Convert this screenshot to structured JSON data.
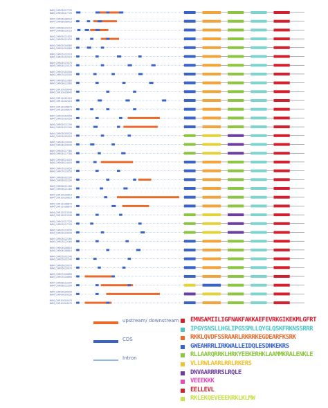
{
  "gene_rows": [
    {
      "label": "NAM_CHR03G17730",
      "exons": [
        [
          0.02,
          0.06
        ],
        [
          0.2,
          0.24
        ],
        [
          0.3,
          0.33
        ],
        [
          0.42,
          0.46
        ]
      ],
      "utr": [
        [
          0.22,
          0.45
        ]
      ],
      "motifs": [
        "blue",
        "orange",
        "green",
        "teal",
        "red"
      ]
    },
    {
      "label": "NAM_CHR06G08410",
      "exons": [
        [
          0.02,
          0.05
        ],
        [
          0.12,
          0.15
        ],
        [
          0.22,
          0.26
        ]
      ],
      "utr": [
        [
          0.18,
          0.4
        ]
      ],
      "motifs": [
        "blue",
        "orange",
        "green",
        "teal",
        "red"
      ]
    },
    {
      "label": "NAM_CHR08G19110",
      "exons": [
        [
          0.03,
          0.06
        ],
        [
          0.1,
          0.14
        ],
        [
          0.2,
          0.24
        ]
      ],
      "utr": [
        [
          0.15,
          0.32
        ]
      ],
      "motifs": [
        "blue",
        "orange",
        "green",
        "teal",
        "red"
      ]
    },
    {
      "label": "NAM_CHR05G11020",
      "exons": [
        [
          0.02,
          0.05
        ],
        [
          0.15,
          0.18
        ],
        [
          0.3,
          0.33
        ]
      ],
      "utr": [
        [
          0.25,
          0.42
        ]
      ],
      "motifs": [
        "blue",
        "orange",
        "green",
        "teal",
        "red"
      ]
    },
    {
      "label": "NAM_CHR02G04580",
      "exons": [
        [
          0.02,
          0.05
        ],
        [
          0.12,
          0.16
        ],
        [
          0.25,
          0.28
        ]
      ],
      "utr": [],
      "motifs": [
        "blue",
        "orange",
        "green",
        "teal",
        "red"
      ]
    },
    {
      "label": "NAM_CHR01G22310",
      "exons": [
        [
          0.02,
          0.05
        ],
        [
          0.2,
          0.23
        ],
        [
          0.4,
          0.44
        ],
        [
          0.6,
          0.63
        ]
      ],
      "utr": [],
      "motifs": [
        "blue",
        "orange",
        "green",
        "teal",
        "red"
      ]
    },
    {
      "label": "NAM_CHR04G15570",
      "exons": [
        [
          0.02,
          0.05
        ],
        [
          0.25,
          0.28
        ],
        [
          0.5,
          0.54
        ],
        [
          0.72,
          0.76
        ]
      ],
      "utr": [],
      "motifs": [
        "blue",
        "orange",
        "green",
        "teal",
        "red"
      ]
    },
    {
      "label": "NAM_CHR07G03300",
      "exons": [
        [
          0.02,
          0.05
        ],
        [
          0.18,
          0.21
        ],
        [
          0.35,
          0.38
        ],
        [
          0.6,
          0.64
        ]
      ],
      "utr": [],
      "motifs": [
        "blue",
        "orange",
        "green",
        "teal",
        "red"
      ]
    },
    {
      "label": "NAM_CHR09G12080",
      "exons": [
        [
          0.02,
          0.05
        ],
        [
          0.2,
          0.23
        ],
        [
          0.45,
          0.48
        ],
        [
          0.7,
          0.74
        ]
      ],
      "utr": [],
      "motifs": [
        "blue",
        "orange",
        "green",
        "teal",
        "red"
      ]
    },
    {
      "label": "NAM_CHR10G09940",
      "exons": [
        [
          0.02,
          0.05
        ],
        [
          0.3,
          0.33
        ],
        [
          0.55,
          0.58
        ]
      ],
      "utr": [],
      "motifs": [
        "blue",
        "orange",
        "green",
        "teal",
        "red"
      ]
    },
    {
      "label": "NAM_CHR11G02210",
      "exons": [
        [
          0.02,
          0.05
        ],
        [
          0.22,
          0.26
        ],
        [
          0.48,
          0.52
        ],
        [
          0.82,
          0.86
        ]
      ],
      "utr": [],
      "motifs": [
        "blue",
        "orange",
        "green",
        "teal",
        "red"
      ]
    },
    {
      "label": "NAM_CHR12G06670",
      "exons": [
        [
          0.02,
          0.05
        ],
        [
          0.15,
          0.18
        ],
        [
          0.3,
          0.33
        ],
        [
          0.55,
          0.58
        ]
      ],
      "utr": [],
      "motifs": [
        "blue",
        "orange",
        "green",
        "teal",
        "red"
      ]
    },
    {
      "label": "NAM_CHR01G03350",
      "exons": [
        [
          0.02,
          0.05
        ],
        [
          0.2,
          0.23
        ],
        [
          0.42,
          0.45
        ]
      ],
      "utr": [
        [
          0.5,
          0.8
        ]
      ],
      "motifs": [
        "blue",
        "orange",
        "green",
        "teal",
        "red"
      ]
    },
    {
      "label": "NAM_CHR02G11190",
      "exons": [
        [
          0.02,
          0.05
        ],
        [
          0.18,
          0.22
        ],
        [
          0.4,
          0.43
        ]
      ],
      "utr": [
        [
          0.46,
          0.78
        ]
      ],
      "motifs": [
        "blue",
        "orange",
        "green",
        "teal",
        "red"
      ]
    },
    {
      "label": "NAM_CHR03G05520",
      "exons": [
        [
          0.02,
          0.05
        ],
        [
          0.25,
          0.28
        ],
        [
          0.5,
          0.53
        ]
      ],
      "utr": [],
      "motifs": [
        "green",
        "yellow",
        "purple",
        "teal",
        "red"
      ]
    },
    {
      "label": "NAM_CHR04G20040",
      "exons": [
        [
          0.02,
          0.05
        ],
        [
          0.15,
          0.19
        ],
        [
          0.35,
          0.38
        ]
      ],
      "utr": [],
      "motifs": [
        "green",
        "yellow",
        "purple",
        "teal",
        "red"
      ]
    },
    {
      "label": "NAM_CHR05G17780",
      "exons": [
        [
          0.02,
          0.05
        ],
        [
          0.22,
          0.25
        ],
        [
          0.44,
          0.48
        ]
      ],
      "utr": [],
      "motifs": [
        "green",
        "yellow",
        "purple",
        "teal",
        "red"
      ]
    },
    {
      "label": "NAM_CHR06G14420",
      "exons": [
        [
          0.02,
          0.05
        ],
        [
          0.18,
          0.21
        ]
      ],
      "utr": [
        [
          0.25,
          0.55
        ]
      ],
      "motifs": [
        "blue",
        "orange",
        "green",
        "teal",
        "red"
      ]
    },
    {
      "label": "NAM_CHR07G10050",
      "exons": [
        [
          0.02,
          0.05
        ],
        [
          0.2,
          0.23
        ],
        [
          0.4,
          0.43
        ]
      ],
      "utr": [],
      "motifs": [
        "blue",
        "orange",
        "green",
        "teal",
        "red"
      ]
    },
    {
      "label": "NAM_CHR08G02290",
      "exons": [
        [
          0.02,
          0.05
        ],
        [
          0.3,
          0.33
        ],
        [
          0.55,
          0.58
        ]
      ],
      "utr": [
        [
          0.6,
          0.72
        ]
      ],
      "motifs": [
        "blue",
        "orange",
        "green",
        "teal",
        "red"
      ]
    },
    {
      "label": "NAM_CHR09G21160",
      "exons": [
        [
          0.02,
          0.05
        ],
        [
          0.24,
          0.27
        ],
        [
          0.46,
          0.5
        ]
      ],
      "utr": [],
      "motifs": [
        "blue",
        "orange",
        "green",
        "teal",
        "red"
      ]
    },
    {
      "label": "NAM_CHR10G16610",
      "exons": [
        [
          0.02,
          0.05
        ],
        [
          0.28,
          0.31
        ]
      ],
      "utr": [
        [
          0.4,
          0.98
        ]
      ],
      "motifs": [
        "blue",
        "orange",
        "green",
        "teal",
        "red"
      ]
    },
    {
      "label": "NAM_CHR11G08870",
      "exons": [
        [
          0.02,
          0.05
        ],
        [
          0.35,
          0.39
        ]
      ],
      "utr": [
        [
          0.45,
          0.7
        ]
      ],
      "motifs": [
        "blue",
        "orange",
        "green",
        "teal",
        "red"
      ]
    },
    {
      "label": "NAM_CHR12G13340",
      "exons": [
        [
          0.02,
          0.05
        ],
        [
          0.2,
          0.23
        ],
        [
          0.42,
          0.45
        ]
      ],
      "utr": [],
      "motifs": [
        "green",
        "yellow",
        "purple",
        "teal",
        "red"
      ]
    },
    {
      "label": "NAM_CHR01G17720",
      "exons": [
        [
          0.02,
          0.05
        ],
        [
          0.15,
          0.18
        ],
        [
          0.6,
          0.63
        ]
      ],
      "utr": [],
      "motifs": [
        "green",
        "yellow",
        "purple",
        "teal",
        "red"
      ]
    },
    {
      "label": "NAM_CHR02G19930",
      "exons": [
        [
          0.02,
          0.05
        ],
        [
          0.25,
          0.28
        ],
        [
          0.62,
          0.66
        ]
      ],
      "utr": [],
      "motifs": [
        "green",
        "yellow",
        "purple",
        "teal",
        "red"
      ]
    },
    {
      "label": "NAM_CHR03G22260",
      "exons": [
        [
          0.02,
          0.05
        ],
        [
          0.2,
          0.23
        ],
        [
          0.48,
          0.51
        ]
      ],
      "utr": [],
      "motifs": [
        "blue",
        "orange",
        "green",
        "teal",
        "red"
      ]
    },
    {
      "label": "NAM_CHR04G08810",
      "exons": [
        [
          0.02,
          0.05
        ],
        [
          0.3,
          0.33
        ],
        [
          0.58,
          0.62
        ]
      ],
      "utr": [],
      "motifs": [
        "blue",
        "orange",
        "green",
        "teal",
        "red"
      ]
    },
    {
      "label": "NAM_CHR05G02240",
      "exons": [
        [
          0.02,
          0.05
        ],
        [
          0.18,
          0.21
        ],
        [
          0.5,
          0.53
        ]
      ],
      "utr": [],
      "motifs": [
        "blue",
        "orange",
        "green",
        "teal",
        "red"
      ]
    },
    {
      "label": "NAM_CHR06G20070",
      "exons": [
        [
          0.02,
          0.05
        ],
        [
          0.22,
          0.25
        ],
        [
          0.45,
          0.48
        ]
      ],
      "utr": [],
      "motifs": [
        "blue",
        "orange",
        "green",
        "teal",
        "red"
      ]
    },
    {
      "label": "NAM_CHR07G16690",
      "exons": [
        [
          0.02,
          0.05
        ],
        [
          0.35,
          0.38
        ]
      ],
      "utr": [
        [
          0.1,
          0.38
        ]
      ],
      "motifs": [
        "blue",
        "orange",
        "green",
        "teal",
        "red"
      ]
    },
    {
      "label": "NAM_CHR08G12200",
      "exons": [
        [
          0.02,
          0.05
        ],
        [
          0.2,
          0.23
        ],
        [
          0.5,
          0.53
        ]
      ],
      "utr": [
        [
          0.25,
          0.55
        ]
      ],
      "motifs": [
        "yellow",
        "blue",
        "green",
        "teal",
        "red"
      ]
    },
    {
      "label": "NAM_CHR09G05530",
      "exons": [
        [
          0.02,
          0.05
        ],
        [
          0.2,
          0.23
        ]
      ],
      "utr": [
        [
          0.3,
          0.8
        ]
      ],
      "motifs": [
        "purple",
        "yellow",
        "green",
        "teal",
        "red"
      ]
    },
    {
      "label": "NAM_CHR10G04470",
      "exons": [
        [
          0.02,
          0.05
        ],
        [
          0.3,
          0.33
        ]
      ],
      "utr": [
        [
          0.1,
          0.35
        ]
      ],
      "motifs": [
        "blue",
        "orange",
        "green",
        "teal",
        "red"
      ]
    }
  ],
  "legend": {
    "items": [
      {
        "label": "upstream/ downstream",
        "color": "#e8692a"
      },
      {
        "label": "CDS",
        "color": "#3a63c7"
      },
      {
        "label": "Intron",
        "color": "#8fb6e8"
      }
    ]
  },
  "motif_legend": [
    {
      "color": "#d2202f",
      "seq": "EMNSAMIILIGFNAKFAKKAEFEVRKGIKEKMLGFRT"
    },
    {
      "color": "#49c5c8",
      "seq": "IPGYSNSLLHGLIPGSSMLLQYGLQSKFRKNSSRRR"
    },
    {
      "color": "#e8692a",
      "seq": "RKKLQVDFSSRAARLRKRRKEGDEARFKSRK"
    },
    {
      "color": "#3a63c7",
      "seq": "GWEAHRRLIRKWALLEIDQLESDNKEKRS"
    },
    {
      "color": "#8bc541",
      "seq": "RLLAARQRRKLHRKYEEKERHKLAAMMKRALENKLE"
    },
    {
      "color": "#f2c12e",
      "seq": "VLLRWLAARLRRLRKERS"
    },
    {
      "color": "#6b3fa0",
      "seq": "DNVAARRRRSLRQLE"
    },
    {
      "color": "#e04bbf",
      "seq": "VEEEKKK"
    },
    {
      "color": "#d2202f",
      "seq": "EELLEVL"
    },
    {
      "color": "#c6e04a",
      "seq": "RKLEKQEVEEEKRKLKLMW"
    }
  ],
  "colors": {
    "exon": "#3a63c7",
    "utr": "#e8692a",
    "intron": "#8fb6e8",
    "label": "#5a6fb0",
    "motif_blue": "#3a63c7",
    "motif_orange": "#f0a43a",
    "motif_green": "#8bc541",
    "motif_teal": "#7fd3cf",
    "motif_red": "#d2202f",
    "motif_yellow": "#e2d33a",
    "motif_purple": "#6b3fa0"
  }
}
